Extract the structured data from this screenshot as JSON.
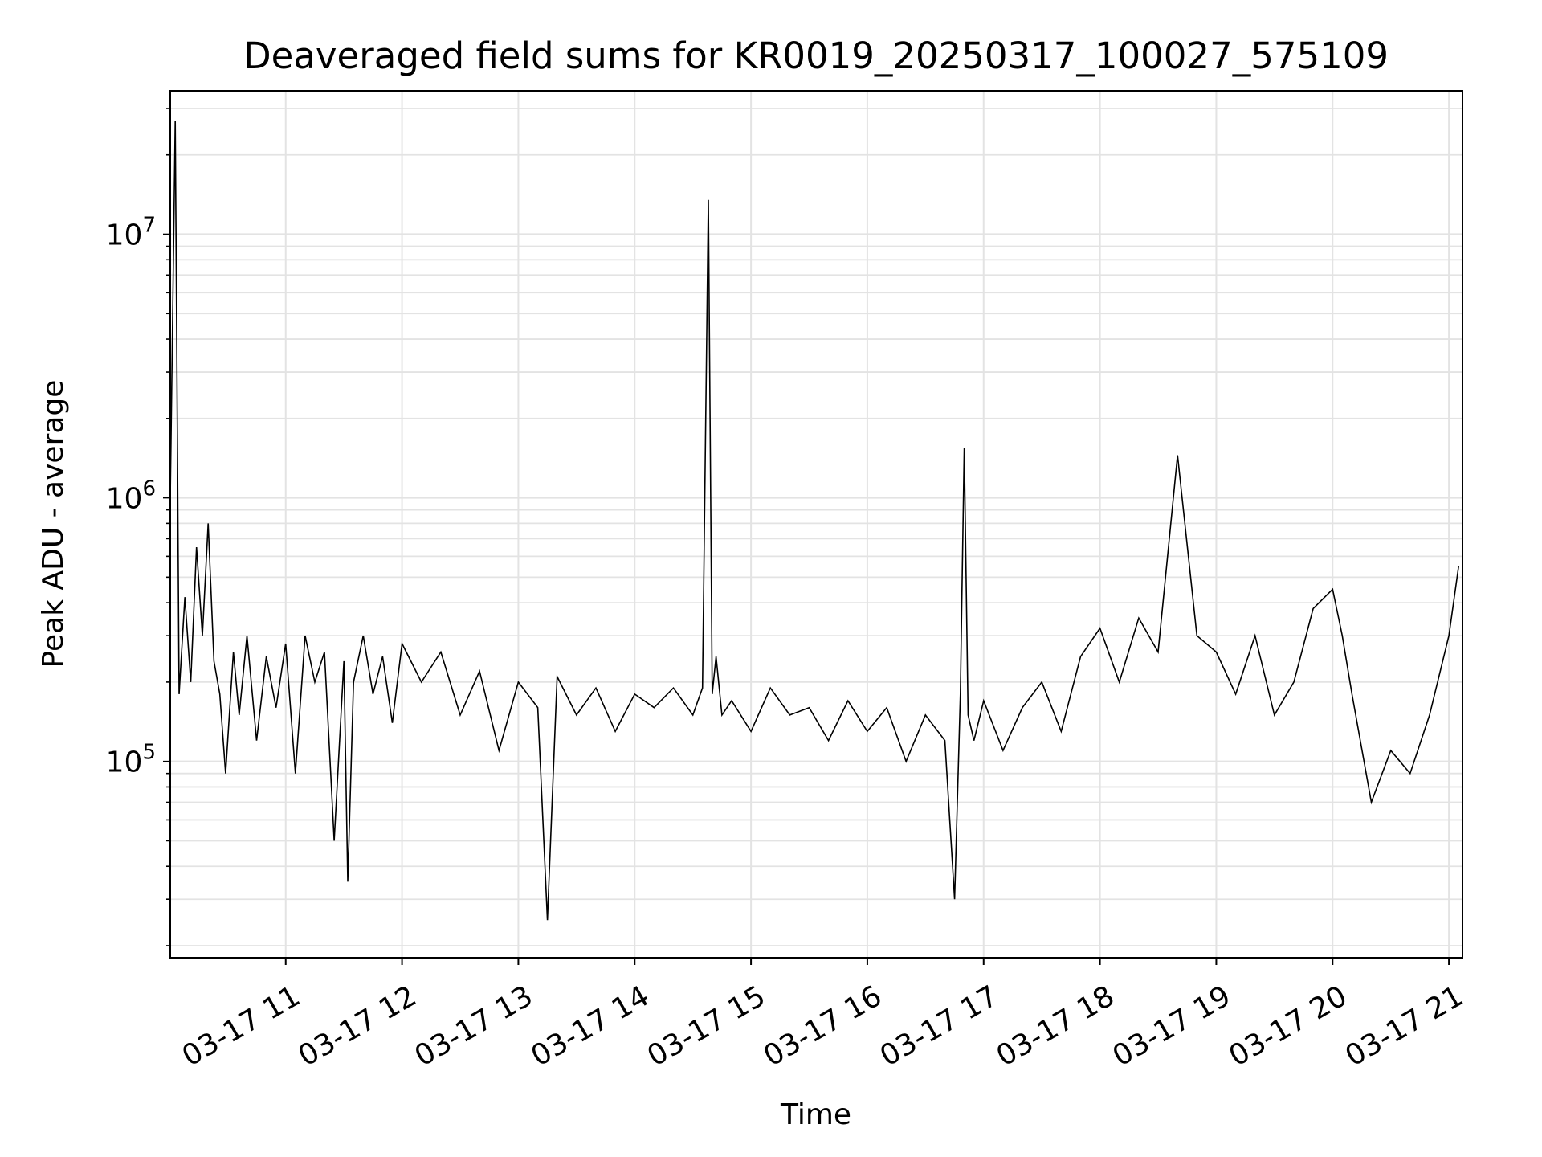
{
  "chart_data": {
    "type": "line",
    "title": "Deaveraged field sums for KR0019_20250317_100027_575109",
    "xlabel": "Time",
    "ylabel": "Peak ADU - average",
    "y_scale": "log",
    "ylim": [
      18000,
      35000000
    ],
    "xlim": [
      "2025-03-17 10:00:27",
      "2025-03-17 21:07:00"
    ],
    "grid": true,
    "legend": "none",
    "line_color": "#000000",
    "x_ticks": [
      {
        "t": "2025-03-17 11:00",
        "label": "03-17 11"
      },
      {
        "t": "2025-03-17 12:00",
        "label": "03-17 12"
      },
      {
        "t": "2025-03-17 13:00",
        "label": "03-17 13"
      },
      {
        "t": "2025-03-17 14:00",
        "label": "03-17 14"
      },
      {
        "t": "2025-03-17 15:00",
        "label": "03-17 15"
      },
      {
        "t": "2025-03-17 16:00",
        "label": "03-17 16"
      },
      {
        "t": "2025-03-17 17:00",
        "label": "03-17 17"
      },
      {
        "t": "2025-03-17 18:00",
        "label": "03-17 18"
      },
      {
        "t": "2025-03-17 19:00",
        "label": "03-17 19"
      },
      {
        "t": "2025-03-17 20:00",
        "label": "03-17 20"
      },
      {
        "t": "2025-03-17 21:00",
        "label": "03-17 21"
      }
    ],
    "y_ticks": [
      {
        "value": 100000,
        "base": "10",
        "exp": "5"
      },
      {
        "value": 1000000,
        "base": "10",
        "exp": "6"
      },
      {
        "value": 10000000,
        "base": "10",
        "exp": "7"
      }
    ],
    "series": [
      {
        "x": [
          "2025-03-17 10:00",
          "2025-03-17 10:03",
          "2025-03-17 10:05",
          "2025-03-17 10:08",
          "2025-03-17 10:11",
          "2025-03-17 10:14",
          "2025-03-17 10:17",
          "2025-03-17 10:20",
          "2025-03-17 10:23",
          "2025-03-17 10:26",
          "2025-03-17 10:29",
          "2025-03-17 10:33",
          "2025-03-17 10:36",
          "2025-03-17 10:40",
          "2025-03-17 10:45",
          "2025-03-17 10:50",
          "2025-03-17 10:55",
          "2025-03-17 11:00",
          "2025-03-17 11:05",
          "2025-03-17 11:10",
          "2025-03-17 11:15",
          "2025-03-17 11:20",
          "2025-03-17 11:25",
          "2025-03-17 11:30",
          "2025-03-17 11:32",
          "2025-03-17 11:35",
          "2025-03-17 11:40",
          "2025-03-17 11:45",
          "2025-03-17 11:50",
          "2025-03-17 11:55",
          "2025-03-17 12:00",
          "2025-03-17 12:10",
          "2025-03-17 12:20",
          "2025-03-17 12:30",
          "2025-03-17 12:40",
          "2025-03-17 12:50",
          "2025-03-17 13:00",
          "2025-03-17 13:10",
          "2025-03-17 13:15",
          "2025-03-17 13:20",
          "2025-03-17 13:30",
          "2025-03-17 13:40",
          "2025-03-17 13:50",
          "2025-03-17 14:00",
          "2025-03-17 14:10",
          "2025-03-17 14:20",
          "2025-03-17 14:30",
          "2025-03-17 14:35",
          "2025-03-17 14:38",
          "2025-03-17 14:40",
          "2025-03-17 14:42",
          "2025-03-17 14:45",
          "2025-03-17 14:50",
          "2025-03-17 15:00",
          "2025-03-17 15:10",
          "2025-03-17 15:20",
          "2025-03-17 15:30",
          "2025-03-17 15:40",
          "2025-03-17 15:50",
          "2025-03-17 16:00",
          "2025-03-17 16:10",
          "2025-03-17 16:20",
          "2025-03-17 16:30",
          "2025-03-17 16:40",
          "2025-03-17 16:45",
          "2025-03-17 16:48",
          "2025-03-17 16:50",
          "2025-03-17 16:52",
          "2025-03-17 16:55",
          "2025-03-17 17:00",
          "2025-03-17 17:10",
          "2025-03-17 17:20",
          "2025-03-17 17:30",
          "2025-03-17 17:40",
          "2025-03-17 17:50",
          "2025-03-17 18:00",
          "2025-03-17 18:10",
          "2025-03-17 18:20",
          "2025-03-17 18:30",
          "2025-03-17 18:40",
          "2025-03-17 18:50",
          "2025-03-17 19:00",
          "2025-03-17 19:10",
          "2025-03-17 19:20",
          "2025-03-17 19:30",
          "2025-03-17 19:40",
          "2025-03-17 19:50",
          "2025-03-17 20:00",
          "2025-03-17 20:05",
          "2025-03-17 20:10",
          "2025-03-17 20:20",
          "2025-03-17 20:30",
          "2025-03-17 20:40",
          "2025-03-17 20:50",
          "2025-03-17 21:00",
          "2025-03-17 21:05"
        ],
        "y": [
          550000,
          27000000,
          180000,
          420000,
          200000,
          650000,
          300000,
          800000,
          240000,
          180000,
          90000,
          260000,
          150000,
          300000,
          120000,
          250000,
          160000,
          280000,
          90000,
          300000,
          200000,
          260000,
          50000,
          240000,
          35000,
          200000,
          300000,
          180000,
          250000,
          140000,
          280000,
          200000,
          260000,
          150000,
          220000,
          110000,
          200000,
          160000,
          25000,
          210000,
          150000,
          190000,
          130000,
          180000,
          160000,
          190000,
          150000,
          190000,
          13500000,
          180000,
          250000,
          150000,
          170000,
          130000,
          190000,
          150000,
          160000,
          120000,
          170000,
          130000,
          160000,
          100000,
          150000,
          120000,
          30000,
          180000,
          1550000,
          150000,
          120000,
          170000,
          110000,
          160000,
          200000,
          130000,
          250000,
          320000,
          200000,
          350000,
          260000,
          1450000,
          300000,
          260000,
          180000,
          300000,
          150000,
          200000,
          380000,
          450000,
          300000,
          180000,
          70000,
          110000,
          90000,
          150000,
          300000,
          550000
        ]
      }
    ]
  }
}
